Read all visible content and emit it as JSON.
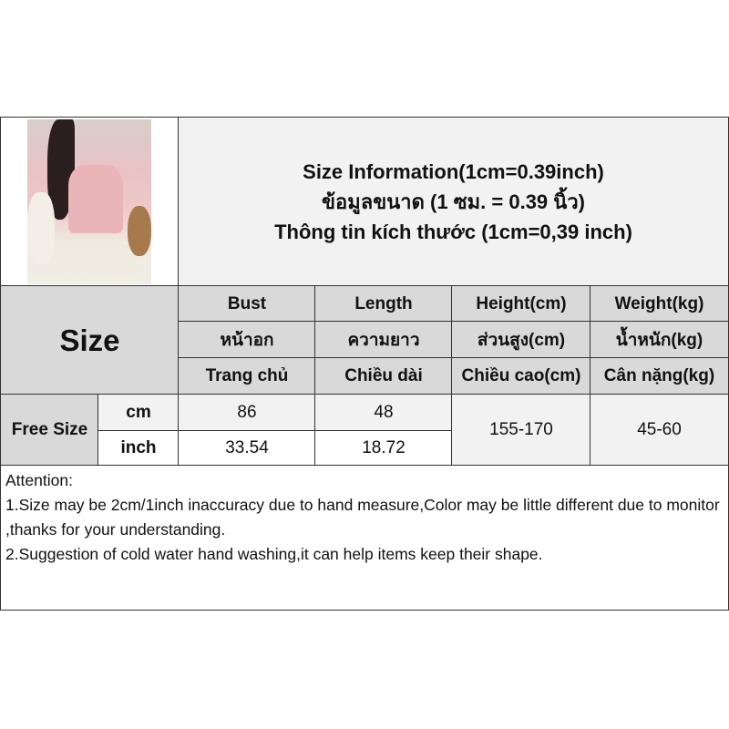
{
  "header": {
    "line1": "Size Information(1cm=0.39inch)",
    "line2": "ข้อมูลขนาด (1 ซม. = 0.39 นิ้ว)",
    "line3": "Thông tin kích thước (1cm=0,39 inch)"
  },
  "size_label": "Size",
  "columns": [
    {
      "en": "Bust",
      "th": "หน้าอก",
      "vi": "Trang chủ"
    },
    {
      "en": "Length",
      "th": "ความยาว",
      "vi": "Chiều dài"
    },
    {
      "en": "Height(cm)",
      "th": "ส่วนสูง(cm)",
      "vi": "Chiều cao(cm)"
    },
    {
      "en": "Weight(kg)",
      "th": "น้ำหนัก(kg)",
      "vi": "Cân nặng(kg)"
    }
  ],
  "row": {
    "name": "Free Size",
    "cm_label": "cm",
    "inch_label": "inch",
    "bust_cm": "86",
    "length_cm": "48",
    "bust_inch": "33.54",
    "length_inch": "18.72",
    "height": "155-170",
    "weight": "45-60"
  },
  "attention": {
    "title": "Attention:",
    "note1": "1.Size may be 2cm/1inch inaccuracy due to hand measure,Color may be little different due to monitor ,thanks for your understanding.",
    "note2": "2.Suggestion of cold water hand washing,it can help items keep their shape."
  },
  "colors": {
    "header_gray": "#d9d9d9",
    "light_gray": "#f2f2f2",
    "border": "#333333"
  }
}
